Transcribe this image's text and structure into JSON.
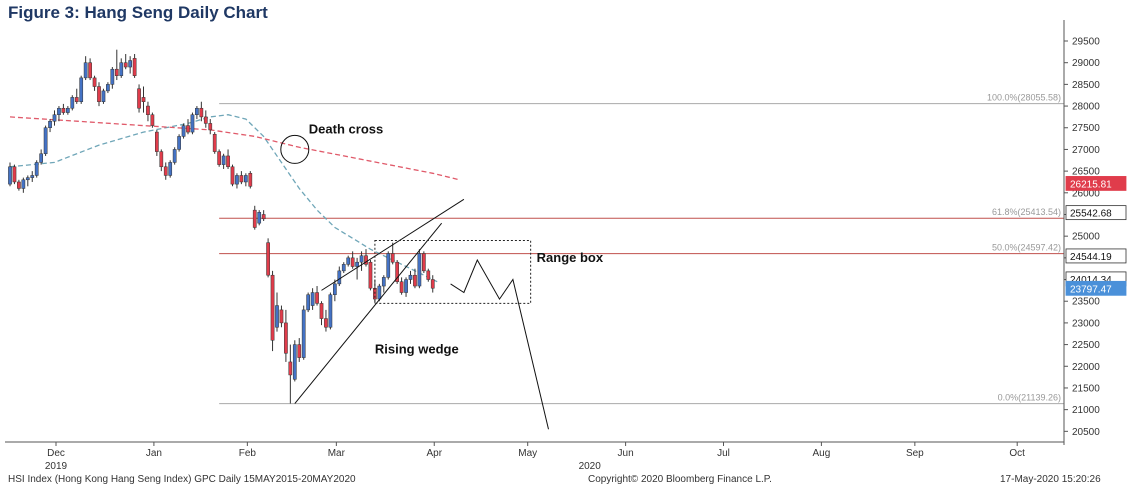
{
  "title": "Figure 3: Hang Seng Daily Chart",
  "footer": {
    "left": "HSI Index (Hong Kong Hang Seng Index) GPC  Daily 15MAY2015-20MAY2020",
    "center": "Copyright© 2020 Bloomberg Finance L.P.",
    "right": "17-May-2020 15:20:26"
  },
  "colors": {
    "up": "#4472c4",
    "down": "#e03c4b",
    "ma_short": "#6fa6b8",
    "ma_long": "#e05a6a",
    "fib_gray": "#aaaaaa",
    "fib_red": "#c0504d",
    "last_price": "#4a90d9"
  },
  "chart_data": {
    "type": "candlestick",
    "title": "Figure 3: Hang Seng Daily Chart",
    "ylim": [
      20300,
      29800
    ],
    "y_ticks": [
      29500,
      29000,
      28500,
      28000,
      27500,
      27000,
      26500,
      26000,
      25500,
      25000,
      24500,
      24000,
      23500,
      23000,
      22500,
      22000,
      21500,
      21000,
      20500
    ],
    "x_month_labels": [
      "Dec",
      "Jan",
      "Feb",
      "Mar",
      "Apr",
      "May",
      "Jun",
      "Jul",
      "Aug",
      "Sep",
      "Oct"
    ],
    "x_year_labels": [
      {
        "month": "Dec",
        "year": "2019"
      },
      {
        "month": "May",
        "year": "2020"
      }
    ],
    "month_offsets": [
      0,
      22,
      43,
      63,
      85,
      106,
      128,
      150,
      172,
      193,
      216
    ],
    "candles": [
      {
        "o": 26200,
        "h": 26700,
        "l": 26150,
        "c": 26600
      },
      {
        "o": 26600,
        "h": 26650,
        "l": 26200,
        "c": 26250
      },
      {
        "o": 26250,
        "h": 26300,
        "l": 26050,
        "c": 26100
      },
      {
        "o": 26100,
        "h": 26350,
        "l": 26000,
        "c": 26300
      },
      {
        "o": 26300,
        "h": 26400,
        "l": 26150,
        "c": 26350
      },
      {
        "o": 26350,
        "h": 26500,
        "l": 26250,
        "c": 26400
      },
      {
        "o": 26400,
        "h": 26750,
        "l": 26350,
        "c": 26700
      },
      {
        "o": 26700,
        "h": 27000,
        "l": 26650,
        "c": 26900
      },
      {
        "o": 26900,
        "h": 27550,
        "l": 26850,
        "c": 27500
      },
      {
        "o": 27500,
        "h": 27700,
        "l": 27400,
        "c": 27650
      },
      {
        "o": 27650,
        "h": 27900,
        "l": 27550,
        "c": 27800
      },
      {
        "o": 27800,
        "h": 28000,
        "l": 27650,
        "c": 27950
      },
      {
        "o": 27950,
        "h": 28050,
        "l": 27800,
        "c": 27850
      },
      {
        "o": 27850,
        "h": 28000,
        "l": 27800,
        "c": 27950
      },
      {
        "o": 27950,
        "h": 28250,
        "l": 27900,
        "c": 28200
      },
      {
        "o": 28200,
        "h": 28400,
        "l": 28050,
        "c": 28100
      },
      {
        "o": 28100,
        "h": 28700,
        "l": 28050,
        "c": 28650
      },
      {
        "o": 28650,
        "h": 29150,
        "l": 28600,
        "c": 29000
      },
      {
        "o": 29000,
        "h": 29100,
        "l": 28600,
        "c": 28650
      },
      {
        "o": 28650,
        "h": 28700,
        "l": 28350,
        "c": 28450
      },
      {
        "o": 28450,
        "h": 28550,
        "l": 28000,
        "c": 28100
      },
      {
        "o": 28100,
        "h": 28400,
        "l": 28050,
        "c": 28350
      },
      {
        "o": 28350,
        "h": 28550,
        "l": 28300,
        "c": 28500
      },
      {
        "o": 28500,
        "h": 28900,
        "l": 28400,
        "c": 28850
      },
      {
        "o": 28850,
        "h": 29300,
        "l": 28600,
        "c": 28700
      },
      {
        "o": 28700,
        "h": 29100,
        "l": 28650,
        "c": 29000
      },
      {
        "o": 29000,
        "h": 29200,
        "l": 28850,
        "c": 28900
      },
      {
        "o": 28900,
        "h": 29150,
        "l": 28750,
        "c": 29050
      },
      {
        "o": 29100,
        "h": 29200,
        "l": 28650,
        "c": 28700
      },
      {
        "o": 28400,
        "h": 28500,
        "l": 27850,
        "c": 27950
      },
      {
        "o": 28200,
        "h": 28450,
        "l": 27850,
        "c": 28100
      },
      {
        "o": 28000,
        "h": 28100,
        "l": 27650,
        "c": 27800
      },
      {
        "o": 27800,
        "h": 27850,
        "l": 27500,
        "c": 27550
      },
      {
        "o": 27400,
        "h": 27450,
        "l": 26850,
        "c": 26950
      },
      {
        "o": 26950,
        "h": 27000,
        "l": 26500,
        "c": 26600
      },
      {
        "o": 26600,
        "h": 26700,
        "l": 26300,
        "c": 26400
      },
      {
        "o": 26400,
        "h": 26750,
        "l": 26350,
        "c": 26700
      },
      {
        "o": 26700,
        "h": 27050,
        "l": 26650,
        "c": 27000
      },
      {
        "o": 27000,
        "h": 27350,
        "l": 26950,
        "c": 27300
      },
      {
        "o": 27300,
        "h": 27600,
        "l": 27250,
        "c": 27550
      },
      {
        "o": 27550,
        "h": 27700,
        "l": 27350,
        "c": 27400
      },
      {
        "o": 27400,
        "h": 27850,
        "l": 27350,
        "c": 27800
      },
      {
        "o": 27800,
        "h": 28000,
        "l": 27700,
        "c": 27950
      },
      {
        "o": 27950,
        "h": 28100,
        "l": 27650,
        "c": 27750
      },
      {
        "o": 27750,
        "h": 27900,
        "l": 27500,
        "c": 27600
      },
      {
        "o": 27600,
        "h": 27700,
        "l": 27350,
        "c": 27450
      },
      {
        "o": 27350,
        "h": 27400,
        "l": 26900,
        "c": 26950
      },
      {
        "o": 26950,
        "h": 27000,
        "l": 26600,
        "c": 26650
      },
      {
        "o": 26650,
        "h": 26900,
        "l": 26550,
        "c": 26850
      },
      {
        "o": 26850,
        "h": 27000,
        "l": 26550,
        "c": 26600
      },
      {
        "o": 26600,
        "h": 26650,
        "l": 26150,
        "c": 26200
      },
      {
        "o": 26200,
        "h": 26450,
        "l": 26100,
        "c": 26400
      },
      {
        "o": 26400,
        "h": 26500,
        "l": 26200,
        "c": 26250
      },
      {
        "o": 26250,
        "h": 26450,
        "l": 26150,
        "c": 26400
      },
      {
        "o": 26450,
        "h": 26500,
        "l": 26100,
        "c": 26150
      },
      {
        "o": 25600,
        "h": 25700,
        "l": 25150,
        "c": 25200
      },
      {
        "o": 25300,
        "h": 25600,
        "l": 25250,
        "c": 25550
      },
      {
        "o": 25500,
        "h": 25600,
        "l": 25350,
        "c": 25400
      },
      {
        "o": 24850,
        "h": 24950,
        "l": 24050,
        "c": 24100
      },
      {
        "o": 24100,
        "h": 24200,
        "l": 22350,
        "c": 22600
      },
      {
        "o": 22900,
        "h": 23700,
        "l": 22800,
        "c": 23400
      },
      {
        "o": 23300,
        "h": 23400,
        "l": 22900,
        "c": 23000
      },
      {
        "o": 23000,
        "h": 23300,
        "l": 22100,
        "c": 22300
      },
      {
        "o": 22100,
        "h": 22500,
        "l": 21140,
        "c": 21800
      },
      {
        "o": 21700,
        "h": 22600,
        "l": 21650,
        "c": 22500
      },
      {
        "o": 22500,
        "h": 22650,
        "l": 22100,
        "c": 22200
      },
      {
        "o": 22200,
        "h": 23400,
        "l": 22150,
        "c": 23300
      },
      {
        "o": 23300,
        "h": 23700,
        "l": 23250,
        "c": 23650
      },
      {
        "o": 23400,
        "h": 23800,
        "l": 23300,
        "c": 23700
      },
      {
        "o": 23700,
        "h": 23850,
        "l": 23400,
        "c": 23450
      },
      {
        "o": 23450,
        "h": 23500,
        "l": 22950,
        "c": 23100
      },
      {
        "o": 23100,
        "h": 23300,
        "l": 22800,
        "c": 22900
      },
      {
        "o": 22900,
        "h": 23700,
        "l": 22850,
        "c": 23650
      },
      {
        "o": 23650,
        "h": 24000,
        "l": 23500,
        "c": 23900
      },
      {
        "o": 23900,
        "h": 24300,
        "l": 23850,
        "c": 24200
      },
      {
        "o": 24200,
        "h": 24400,
        "l": 24150,
        "c": 24350
      },
      {
        "o": 24350,
        "h": 24550,
        "l": 24300,
        "c": 24500
      },
      {
        "o": 24500,
        "h": 24650,
        "l": 24250,
        "c": 24300
      },
      {
        "o": 24300,
        "h": 24500,
        "l": 24000,
        "c": 24400
      },
      {
        "o": 24400,
        "h": 24650,
        "l": 24200,
        "c": 24550
      },
      {
        "o": 24550,
        "h": 24700,
        "l": 24300,
        "c": 24350
      },
      {
        "o": 24400,
        "h": 24450,
        "l": 23750,
        "c": 23800
      },
      {
        "o": 23800,
        "h": 24000,
        "l": 23450,
        "c": 23550
      },
      {
        "o": 23550,
        "h": 23900,
        "l": 23500,
        "c": 23850
      },
      {
        "o": 23850,
        "h": 24100,
        "l": 23700,
        "c": 24050
      },
      {
        "o": 24050,
        "h": 24650,
        "l": 24000,
        "c": 24600
      },
      {
        "o": 24600,
        "h": 24850,
        "l": 24350,
        "c": 24400
      },
      {
        "o": 24400,
        "h": 24450,
        "l": 23900,
        "c": 23950
      },
      {
        "o": 23950,
        "h": 24050,
        "l": 23650,
        "c": 23700
      },
      {
        "o": 23700,
        "h": 24050,
        "l": 23600,
        "c": 24000
      },
      {
        "o": 24000,
        "h": 24200,
        "l": 23900,
        "c": 24100
      },
      {
        "o": 24100,
        "h": 24250,
        "l": 23800,
        "c": 23850
      },
      {
        "o": 23850,
        "h": 24700,
        "l": 23800,
        "c": 24600
      },
      {
        "o": 24600,
        "h": 24650,
        "l": 24150,
        "c": 24200
      },
      {
        "o": 24200,
        "h": 24250,
        "l": 23950,
        "c": 24000
      },
      {
        "o": 24000,
        "h": 24100,
        "l": 23700,
        "c": 23800
      }
    ],
    "moving_averages": [
      {
        "name": "short",
        "style": "dashed",
        "points": [
          [
            0,
            26600
          ],
          [
            10,
            26700
          ],
          [
            20,
            27100
          ],
          [
            30,
            27400
          ],
          [
            40,
            27600
          ],
          [
            45,
            27750
          ],
          [
            49,
            27800
          ],
          [
            53,
            27700
          ],
          [
            57,
            27300
          ],
          [
            61,
            26700
          ],
          [
            65,
            26100
          ],
          [
            69,
            25600
          ],
          [
            73,
            25200
          ],
          [
            77,
            24950
          ],
          [
            81,
            24700
          ],
          [
            85,
            24500
          ],
          [
            89,
            24300
          ],
          [
            93,
            24100
          ],
          [
            96,
            23950
          ]
        ]
      },
      {
        "name": "long",
        "style": "dashed",
        "points": [
          [
            0,
            27750
          ],
          [
            15,
            27650
          ],
          [
            30,
            27550
          ],
          [
            45,
            27450
          ],
          [
            55,
            27300
          ],
          [
            65,
            27050
          ],
          [
            75,
            26850
          ],
          [
            85,
            26650
          ],
          [
            95,
            26450
          ],
          [
            101,
            26300
          ]
        ]
      }
    ],
    "fib_levels": [
      {
        "label": "100.0%(28055.58)",
        "value": 28055.58,
        "color": "gray",
        "x_start": 47
      },
      {
        "label": "61.8%(25413.54)",
        "value": 25413.54,
        "color": "red",
        "x_start": 47
      },
      {
        "label": "50.0%(24597.42)",
        "value": 24597.42,
        "color": "red",
        "x_start": 47
      },
      {
        "label": "0.0%(21139.26)",
        "value": 21139.26,
        "color": "gray",
        "x_start": 47
      }
    ],
    "price_tags": [
      {
        "label": "26215.81",
        "value": 26215.81,
        "kind": "red"
      },
      {
        "label": "25542.68",
        "value": 25542.68,
        "kind": "dark"
      },
      {
        "label": "24544.19",
        "value": 24544.19,
        "kind": "dark"
      },
      {
        "label": "24014.34",
        "value": 24014.34,
        "kind": "dark"
      },
      {
        "label": "23797.47",
        "value": 23797.47,
        "kind": "blue"
      }
    ],
    "annotations": {
      "death_cross": {
        "label": "Death cross",
        "x": 64,
        "y": 27000
      },
      "range_box": {
        "label": "Range box",
        "x1": 82,
        "x2": 117,
        "y1": 23450,
        "y2": 24900
      },
      "rising_wedge": {
        "label": "Rising wedge"
      },
      "wedge_lines": [
        {
          "from": [
            64,
            21140
          ],
          "to": [
            97,
            25300
          ]
        },
        {
          "from": [
            70,
            23750
          ],
          "to": [
            102,
            25850
          ]
        }
      ],
      "projection": [
        [
          99,
          23900
        ],
        [
          102,
          23700
        ],
        [
          105,
          24450
        ],
        [
          110,
          23550
        ],
        [
          113,
          24000
        ],
        [
          121,
          20550
        ]
      ]
    }
  }
}
